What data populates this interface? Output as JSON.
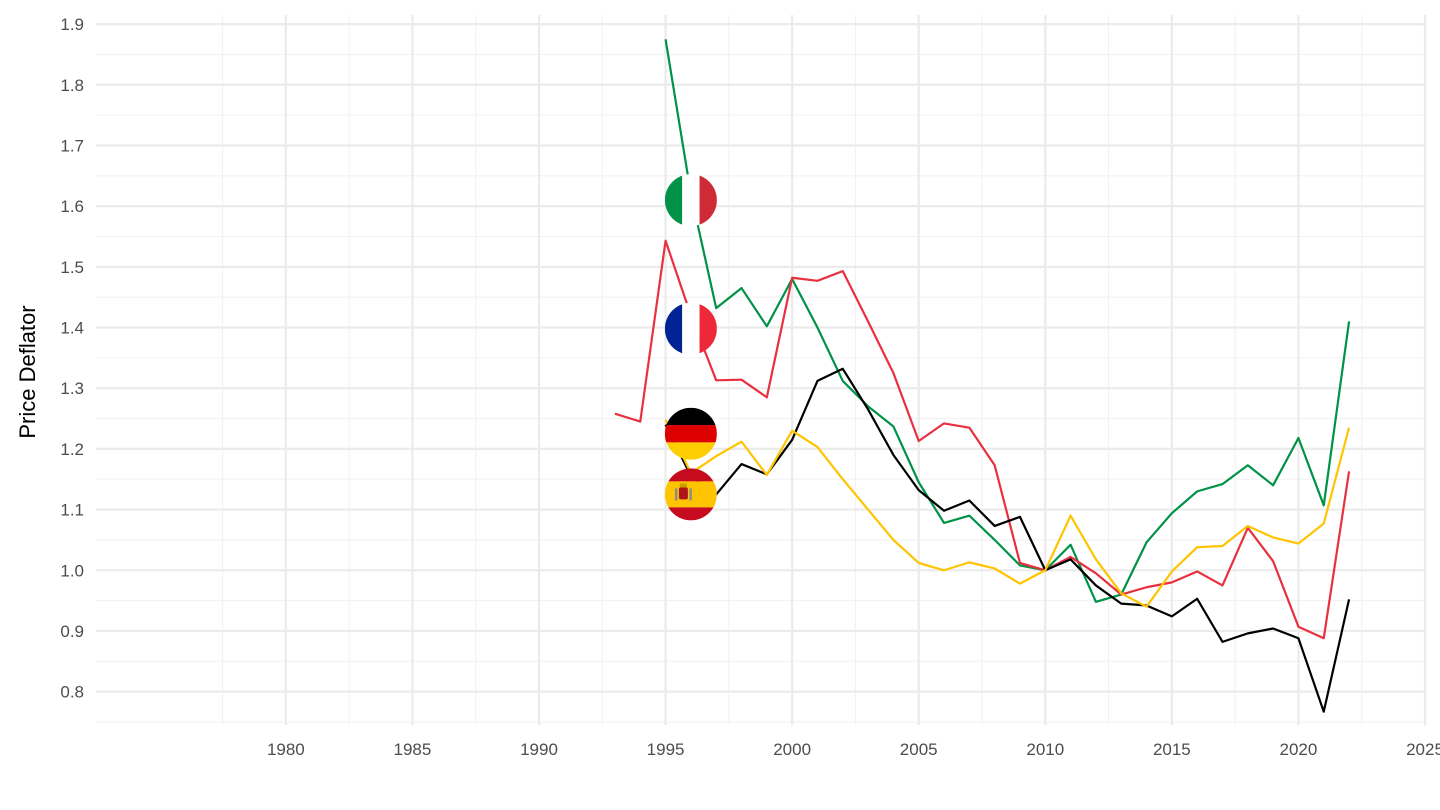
{
  "chart_data": {
    "type": "line",
    "ylabel": "Price Deflator",
    "xlabel": "",
    "xlim": [
      1972.5,
      2025
    ],
    "ylim": [
      0.745,
      1.915
    ],
    "x_ticks": [
      "1980",
      "1985",
      "1990",
      "1995",
      "2000",
      "2005",
      "2010",
      "2015",
      "2020",
      "2025"
    ],
    "y_ticks": [
      "0.8",
      "0.9",
      "1.0",
      "1.1",
      "1.2",
      "1.3",
      "1.4",
      "1.5",
      "1.6",
      "1.7",
      "1.8",
      "1.9"
    ],
    "grid": true,
    "legend": "flag markers near series start",
    "series": [
      {
        "country": "Italy",
        "flag_icon": "italy-flag-icon",
        "color": "#009246",
        "flag_at": [
          1996,
          1.61
        ],
        "x": [
          1995,
          1996,
          1997,
          1998,
          1999,
          2000,
          2001,
          2002,
          2003,
          2004,
          2005,
          2006,
          2007,
          2008,
          2009,
          2010,
          2011,
          2012,
          2013,
          2014,
          2015,
          2016,
          2017,
          2018,
          2019,
          2020,
          2021,
          2022
        ],
        "values": [
          1.875,
          1.62,
          1.432,
          1.465,
          1.402,
          1.48,
          1.4,
          1.312,
          1.27,
          1.237,
          1.145,
          1.078,
          1.09,
          1.05,
          1.008,
          1.0,
          1.042,
          0.948,
          0.96,
          1.046,
          1.094,
          1.13,
          1.142,
          1.173,
          1.14,
          1.218,
          1.107,
          1.41
        ]
      },
      {
        "country": "France",
        "flag_icon": "france-flag-icon",
        "color": "#e8303f",
        "flag_at": [
          1996,
          1.398
        ],
        "x": [
          1993,
          1994,
          1995,
          1996,
          1997,
          1998,
          1999,
          2000,
          2001,
          2002,
          2003,
          2004,
          2005,
          2006,
          2007,
          2008,
          2009,
          2010,
          2011,
          2012,
          2013,
          2014,
          2015,
          2016,
          2017,
          2018,
          2019,
          2020,
          2021,
          2022
        ],
        "values": [
          1.258,
          1.245,
          1.543,
          1.42,
          1.313,
          1.314,
          1.285,
          1.482,
          1.477,
          1.493,
          1.41,
          1.325,
          1.213,
          1.242,
          1.235,
          1.173,
          1.012,
          1.0,
          1.022,
          0.995,
          0.96,
          0.972,
          0.98,
          0.998,
          0.975,
          1.07,
          1.015,
          0.907,
          0.888,
          1.163
        ]
      },
      {
        "country": "Germany",
        "flag_icon": "germany-flag-icon",
        "color": "#000000",
        "flag_at": [
          1996,
          1.225
        ],
        "x": [
          1995,
          1996,
          1997,
          1998,
          1999,
          2000,
          2001,
          2002,
          2003,
          2004,
          2005,
          2006,
          2007,
          2008,
          2009,
          2010,
          2011,
          2012,
          2013,
          2014,
          2015,
          2016,
          2017,
          2018,
          2019,
          2020,
          2021,
          2022
        ],
        "values": [
          1.24,
          1.155,
          1.125,
          1.175,
          1.158,
          1.215,
          1.312,
          1.332,
          1.265,
          1.19,
          1.132,
          1.098,
          1.115,
          1.073,
          1.088,
          1.0,
          1.018,
          0.975,
          0.945,
          0.942,
          0.924,
          0.953,
          0.882,
          0.896,
          0.904,
          0.888,
          0.767,
          0.952
        ]
      },
      {
        "country": "Spain",
        "flag_icon": "spain-flag-icon",
        "color": "#ffc400",
        "flag_at": [
          1996,
          1.125
        ],
        "x": [
          1995,
          1996,
          1997,
          1998,
          1999,
          2000,
          2001,
          2002,
          2003,
          2004,
          2005,
          2006,
          2007,
          2008,
          2009,
          2010,
          2011,
          2012,
          2013,
          2014,
          2015,
          2016,
          2017,
          2018,
          2019,
          2020,
          2021,
          2022
        ],
        "values": [
          1.248,
          1.16,
          1.188,
          1.212,
          1.157,
          1.23,
          1.203,
          1.15,
          1.1,
          1.05,
          1.012,
          1.0,
          1.013,
          1.003,
          0.978,
          1.0,
          1.09,
          1.018,
          0.962,
          0.94,
          0.998,
          1.038,
          1.04,
          1.073,
          1.054,
          1.044,
          1.077,
          1.235
        ]
      }
    ]
  }
}
